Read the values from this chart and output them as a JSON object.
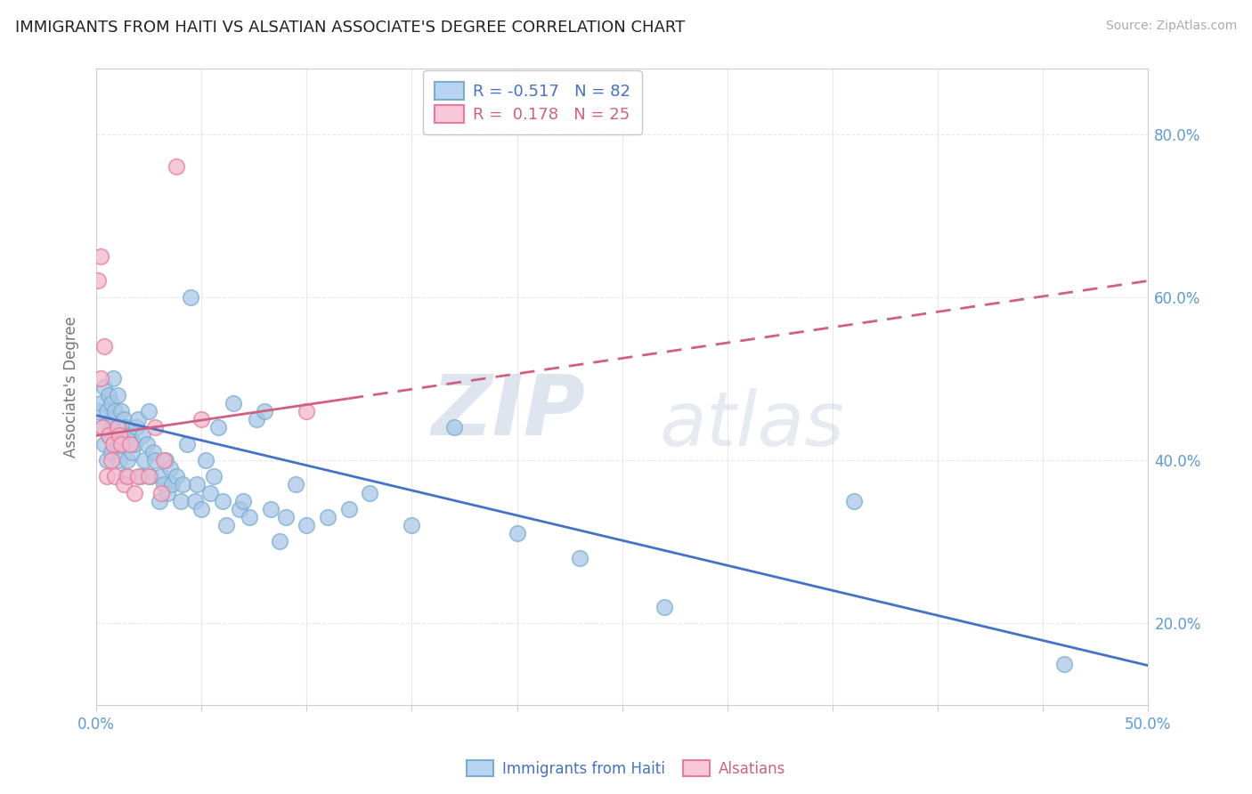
{
  "title": "IMMIGRANTS FROM HAITI VS ALSATIAN ASSOCIATE'S DEGREE CORRELATION CHART",
  "source": "Source: ZipAtlas.com",
  "ylabel": "Associate's Degree",
  "xlim": [
    0.0,
    0.5
  ],
  "ylim": [
    0.1,
    0.88
  ],
  "xticks": [
    0.0,
    0.05,
    0.1,
    0.15,
    0.2,
    0.25,
    0.3,
    0.35,
    0.4,
    0.45,
    0.5
  ],
  "xtick_labels_show": [
    true,
    false,
    false,
    false,
    false,
    false,
    false,
    false,
    false,
    false,
    true
  ],
  "yticks": [
    0.2,
    0.4,
    0.6,
    0.8
  ],
  "series1_label": "Immigrants from Haiti",
  "series1_color": "#a8c8e8",
  "series1_edge_color": "#7aaed0",
  "series1_line_color": "#4472c4",
  "series1_R": -0.517,
  "series1_N": 82,
  "series1_x": [
    0.001,
    0.002,
    0.003,
    0.004,
    0.004,
    0.005,
    0.005,
    0.006,
    0.006,
    0.007,
    0.007,
    0.007,
    0.008,
    0.008,
    0.009,
    0.009,
    0.01,
    0.01,
    0.011,
    0.011,
    0.012,
    0.012,
    0.013,
    0.013,
    0.014,
    0.014,
    0.015,
    0.016,
    0.017,
    0.018,
    0.019,
    0.02,
    0.021,
    0.022,
    0.023,
    0.024,
    0.025,
    0.026,
    0.027,
    0.028,
    0.03,
    0.031,
    0.032,
    0.033,
    0.034,
    0.035,
    0.036,
    0.038,
    0.04,
    0.041,
    0.043,
    0.045,
    0.047,
    0.048,
    0.05,
    0.052,
    0.054,
    0.056,
    0.058,
    0.06,
    0.062,
    0.065,
    0.068,
    0.07,
    0.073,
    0.076,
    0.08,
    0.083,
    0.087,
    0.09,
    0.095,
    0.1,
    0.11,
    0.12,
    0.13,
    0.15,
    0.17,
    0.2,
    0.23,
    0.27,
    0.36,
    0.46
  ],
  "series1_y": [
    0.46,
    0.47,
    0.44,
    0.42,
    0.49,
    0.46,
    0.4,
    0.43,
    0.48,
    0.47,
    0.44,
    0.41,
    0.45,
    0.5,
    0.43,
    0.46,
    0.42,
    0.48,
    0.4,
    0.44,
    0.46,
    0.43,
    0.42,
    0.45,
    0.38,
    0.44,
    0.4,
    0.43,
    0.41,
    0.42,
    0.44,
    0.45,
    0.38,
    0.43,
    0.4,
    0.42,
    0.46,
    0.38,
    0.41,
    0.4,
    0.35,
    0.38,
    0.37,
    0.4,
    0.36,
    0.39,
    0.37,
    0.38,
    0.35,
    0.37,
    0.42,
    0.6,
    0.35,
    0.37,
    0.34,
    0.4,
    0.36,
    0.38,
    0.44,
    0.35,
    0.32,
    0.47,
    0.34,
    0.35,
    0.33,
    0.45,
    0.46,
    0.34,
    0.3,
    0.33,
    0.37,
    0.32,
    0.33,
    0.34,
    0.36,
    0.32,
    0.44,
    0.31,
    0.28,
    0.22,
    0.35,
    0.15
  ],
  "series2_label": "Alsatians",
  "series2_color": "#f4b8cc",
  "series2_edge_color": "#e87a9a",
  "series2_line_color": "#d06080",
  "series2_R": 0.178,
  "series2_N": 25,
  "series2_x": [
    0.001,
    0.002,
    0.002,
    0.003,
    0.004,
    0.005,
    0.006,
    0.007,
    0.008,
    0.009,
    0.01,
    0.011,
    0.012,
    0.013,
    0.015,
    0.016,
    0.018,
    0.02,
    0.025,
    0.028,
    0.031,
    0.032,
    0.038,
    0.05,
    0.1
  ],
  "series2_y": [
    0.62,
    0.5,
    0.65,
    0.44,
    0.54,
    0.38,
    0.43,
    0.4,
    0.42,
    0.38,
    0.44,
    0.43,
    0.42,
    0.37,
    0.38,
    0.42,
    0.36,
    0.38,
    0.38,
    0.44,
    0.36,
    0.4,
    0.76,
    0.45,
    0.46
  ],
  "trend1_x0": 0.0,
  "trend1_y0": 0.455,
  "trend1_x1": 0.5,
  "trend1_y1": 0.148,
  "trend2_x0": 0.0,
  "trend2_y0": 0.43,
  "trend2_x1": 0.5,
  "trend2_y1": 0.62,
  "watermark_zip": "ZIP",
  "watermark_atlas": "atlas",
  "background_color": "#ffffff",
  "grid_color": "#e8e8e8",
  "axis_color": "#cccccc",
  "title_color": "#222222",
  "tick_label_color": "#5b9bd5",
  "ylabel_color": "#777777"
}
